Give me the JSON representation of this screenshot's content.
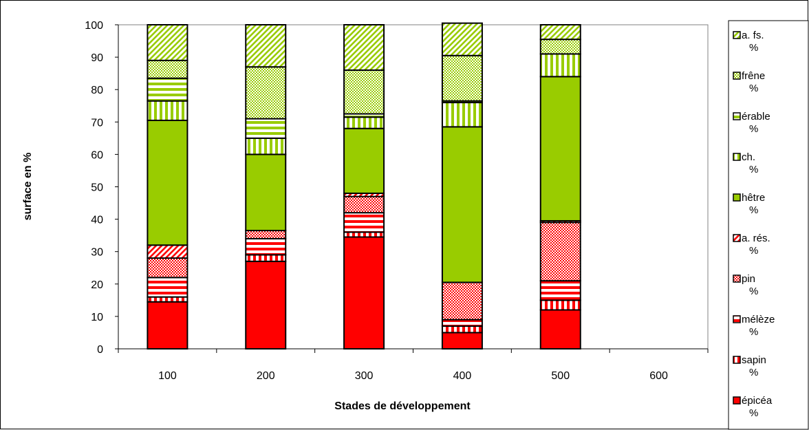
{
  "chart_data": {
    "type": "bar",
    "stacked": true,
    "categories": [
      "100",
      "200",
      "300",
      "400",
      "500",
      "600"
    ],
    "xlabel": "Stades de développement",
    "ylabel": "surface en %",
    "ylim": [
      0,
      100
    ],
    "yticks": [
      0,
      10,
      20,
      30,
      40,
      50,
      60,
      70,
      80,
      90,
      100
    ],
    "grid": false,
    "legend_position": "right",
    "series": [
      {
        "name": "épicéa",
        "unit": "%",
        "color": "#ff0000",
        "pattern": "solid",
        "values": [
          14.5,
          27,
          34.5,
          5,
          12,
          0
        ]
      },
      {
        "name": "sapin",
        "unit": "%",
        "color": "#ff0000",
        "pattern": "vertical-stripes",
        "values": [
          1.5,
          2,
          1.5,
          2,
          3,
          0
        ]
      },
      {
        "name": "mélèze",
        "unit": "%",
        "color": "#ff0000",
        "pattern": "horizontal-stripes",
        "values": [
          6,
          5,
          6,
          2,
          6,
          0
        ]
      },
      {
        "name": "pin",
        "unit": "%",
        "color": "#ff0000",
        "pattern": "dots",
        "values": [
          6,
          2.5,
          5,
          11.5,
          18,
          0
        ]
      },
      {
        "name": "a. rés.",
        "unit": "%",
        "color": "#ff0000",
        "pattern": "diagonal-stripes",
        "values": [
          4,
          0,
          1,
          0,
          0.5,
          0
        ]
      },
      {
        "name": "hêtre",
        "unit": "%",
        "color": "#99cc00",
        "pattern": "solid",
        "values": [
          38.5,
          23.5,
          20,
          48,
          44.5,
          0
        ]
      },
      {
        "name": "ch.",
        "unit": "%",
        "color": "#99cc00",
        "pattern": "vertical-stripes",
        "values": [
          6,
          5,
          3.5,
          7.5,
          7,
          0
        ]
      },
      {
        "name": "érable",
        "unit": "%",
        "color": "#99cc00",
        "pattern": "horizontal-stripes",
        "values": [
          7,
          6,
          1,
          0.5,
          0,
          0
        ]
      },
      {
        "name": "frêne",
        "unit": "%",
        "color": "#99cc00",
        "pattern": "dots",
        "values": [
          5.5,
          16,
          13.5,
          14,
          4.5,
          0
        ]
      },
      {
        "name": "a. fs.",
        "unit": "%",
        "color": "#99cc00",
        "pattern": "diagonal-stripes",
        "values": [
          11,
          13,
          14,
          10,
          4.5,
          0
        ]
      }
    ]
  }
}
